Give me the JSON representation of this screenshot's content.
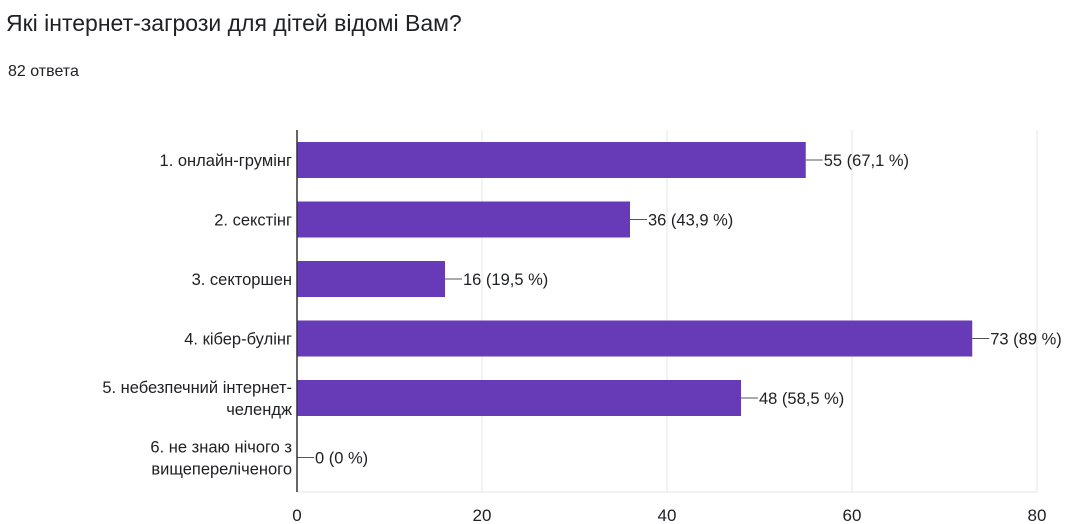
{
  "question": {
    "title": "Які інтернет-загрози для дітей відомі Вам?",
    "response_count": "82 ответа"
  },
  "colors": {
    "bar": "#673ab7",
    "grid": "#e6e6e6",
    "axis": "#333333",
    "text": "#202124"
  },
  "chart_data": {
    "type": "bar",
    "orientation": "horizontal",
    "categories": [
      [
        "1. онлайн-грумінг"
      ],
      [
        "2. секстінг"
      ],
      [
        "3. секторшен"
      ],
      [
        "4. кібер-булінг"
      ],
      [
        "5. небезпечний інтернет-",
        "челендж"
      ],
      [
        "6. не знаю нічого з",
        "вищепереліченого"
      ]
    ],
    "values": [
      55,
      36,
      16,
      73,
      48,
      0
    ],
    "value_labels": [
      "55 (67,1 %)",
      "36 (43,9 %)",
      "16 (19,5 %)",
      "73 (89 %)",
      "48 (58,5 %)",
      "0 (0 %)"
    ],
    "xlim": [
      0,
      80
    ],
    "xticks": [
      0,
      20,
      40,
      60,
      80
    ],
    "grid": true,
    "legend": "none"
  }
}
